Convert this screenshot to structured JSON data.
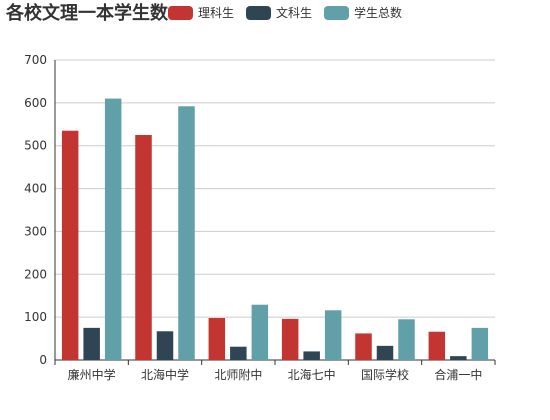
{
  "chart_data": {
    "type": "bar",
    "title": "各校文理一本学生数",
    "categories": [
      "廉州中学",
      "北海中学",
      "北师附中",
      "北海七中",
      "国际学校",
      "合浦一中"
    ],
    "series": [
      {
        "name": "理科生",
        "color": "#c23531",
        "values": [
          535,
          525,
          98,
          96,
          62,
          66
        ]
      },
      {
        "name": "文科生",
        "color": "#2f4554",
        "values": [
          75,
          67,
          31,
          20,
          33,
          9
        ]
      },
      {
        "name": "学生总数",
        "color": "#61a0a8",
        "values": [
          610,
          592,
          129,
          116,
          95,
          75
        ]
      }
    ],
    "yticks": [
      0,
      100,
      200,
      300,
      400,
      500,
      600,
      700
    ],
    "ylim": [
      0,
      700
    ],
    "xlabel": "",
    "ylabel": "",
    "grid": true,
    "legend_position": "top"
  }
}
